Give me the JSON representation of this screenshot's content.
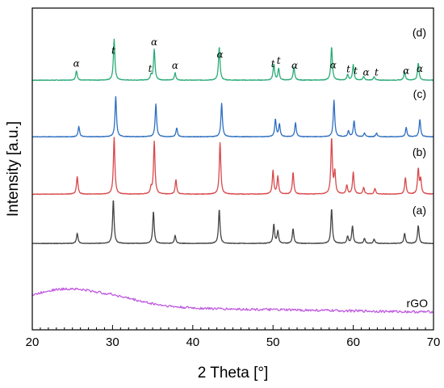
{
  "chart_data": {
    "type": "line",
    "xlabel": "2 Theta [°]",
    "ylabel": "Intensity [a.u.]",
    "xlim": [
      20,
      70
    ],
    "xticks": [
      20,
      30,
      40,
      50,
      60,
      70
    ],
    "colors": {
      "d": "#2bab78",
      "c": "#2e6fc1",
      "b": "#d9484a",
      "a": "#444444",
      "rGO": "#c05be0"
    },
    "series": [
      {
        "name": "(d)",
        "key": "d",
        "baseline": 0.02,
        "slope": 0.0,
        "peaks": [
          [
            25.5,
            0.13
          ],
          [
            30.2,
            0.56
          ],
          [
            34.8,
            0.07
          ],
          [
            35.2,
            0.42
          ],
          [
            37.8,
            0.1
          ],
          [
            43.3,
            0.46
          ],
          [
            50.1,
            0.22
          ],
          [
            50.7,
            0.16
          ],
          [
            52.6,
            0.18
          ],
          [
            57.3,
            0.46
          ],
          [
            59.3,
            0.08
          ],
          [
            60.0,
            0.21
          ],
          [
            61.3,
            0.05
          ],
          [
            62.6,
            0.05
          ],
          [
            66.4,
            0.12
          ],
          [
            68.1,
            0.24
          ]
        ]
      },
      {
        "name": "(c)",
        "key": "c",
        "baseline": 0.02,
        "slope": 0.0,
        "peaks": [
          [
            25.8,
            0.14
          ],
          [
            30.4,
            0.55
          ],
          [
            35.4,
            0.45
          ],
          [
            38.0,
            0.12
          ],
          [
            43.6,
            0.46
          ],
          [
            50.3,
            0.24
          ],
          [
            50.8,
            0.17
          ],
          [
            52.8,
            0.19
          ],
          [
            57.6,
            0.5
          ],
          [
            59.4,
            0.08
          ],
          [
            60.1,
            0.22
          ],
          [
            61.4,
            0.05
          ],
          [
            62.9,
            0.05
          ],
          [
            66.6,
            0.13
          ],
          [
            68.3,
            0.24
          ]
        ]
      },
      {
        "name": "(b)",
        "key": "b",
        "baseline": 0.02,
        "slope": 0.0,
        "peaks": [
          [
            25.6,
            0.24
          ],
          [
            30.2,
            0.78
          ],
          [
            34.8,
            0.08
          ],
          [
            35.2,
            0.72
          ],
          [
            37.9,
            0.2
          ],
          [
            43.4,
            0.71
          ],
          [
            50.0,
            0.32
          ],
          [
            50.6,
            0.24
          ],
          [
            52.5,
            0.3
          ],
          [
            57.3,
            0.76
          ],
          [
            57.7,
            0.3
          ],
          [
            59.2,
            0.12
          ],
          [
            60.0,
            0.3
          ],
          [
            61.3,
            0.09
          ],
          [
            62.7,
            0.08
          ],
          [
            66.5,
            0.23
          ],
          [
            68.1,
            0.34
          ],
          [
            68.4,
            0.2
          ]
        ]
      },
      {
        "name": "(a)",
        "key": "a",
        "baseline": 0.02,
        "slope": 0.0,
        "peaks": [
          [
            25.6,
            0.14
          ],
          [
            30.1,
            0.6
          ],
          [
            35.1,
            0.44
          ],
          [
            37.8,
            0.11
          ],
          [
            43.3,
            0.47
          ],
          [
            50.1,
            0.26
          ],
          [
            50.6,
            0.17
          ],
          [
            52.5,
            0.2
          ],
          [
            57.3,
            0.48
          ],
          [
            59.3,
            0.1
          ],
          [
            59.9,
            0.24
          ],
          [
            61.4,
            0.07
          ],
          [
            62.6,
            0.06
          ],
          [
            66.4,
            0.14
          ],
          [
            68.1,
            0.25
          ]
        ]
      },
      {
        "name": "rGO",
        "key": "rGO",
        "broad": true,
        "points": [
          [
            20,
            0.36
          ],
          [
            21,
            0.41
          ],
          [
            22,
            0.46
          ],
          [
            23,
            0.48
          ],
          [
            24,
            0.49
          ],
          [
            25,
            0.5
          ],
          [
            26,
            0.48
          ],
          [
            27,
            0.46
          ],
          [
            28,
            0.43
          ],
          [
            30,
            0.38
          ],
          [
            32,
            0.3
          ],
          [
            34,
            0.22
          ],
          [
            36,
            0.16
          ],
          [
            38,
            0.12
          ],
          [
            40,
            0.1
          ],
          [
            44,
            0.08
          ],
          [
            48,
            0.07
          ],
          [
            52,
            0.06
          ],
          [
            56,
            0.05
          ],
          [
            60,
            0.04
          ],
          [
            64,
            0.03
          ],
          [
            68,
            0.02
          ],
          [
            70,
            0.02
          ]
        ]
      }
    ],
    "annotations": [
      {
        "text": "α",
        "x": 25.5
      },
      {
        "text": "t",
        "x": 30.1
      },
      {
        "text": "t",
        "x": 34.7
      },
      {
        "text": "α",
        "x": 35.2
      },
      {
        "text": "α",
        "x": 37.8
      },
      {
        "text": "α",
        "x": 43.4
      },
      {
        "text": "t",
        "x": 50.0
      },
      {
        "text": "t",
        "x": 50.7
      },
      {
        "text": "α",
        "x": 52.7
      },
      {
        "text": "α",
        "x": 57.5
      },
      {
        "text": "t",
        "x": 59.4
      },
      {
        "text": "t",
        "x": 60.3
      },
      {
        "text": "α",
        "x": 61.6
      },
      {
        "text": "t",
        "x": 62.9
      },
      {
        "text": "α",
        "x": 66.6
      },
      {
        "text": "α",
        "x": 68.3
      }
    ]
  }
}
